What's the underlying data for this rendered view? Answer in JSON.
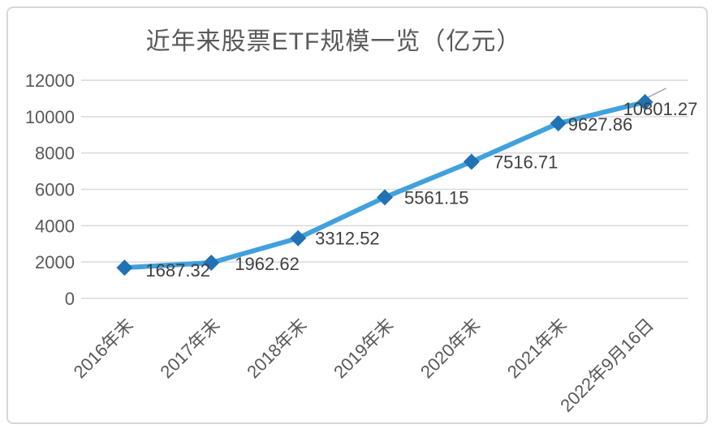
{
  "chart_data": {
    "type": "line",
    "title": "近年来股票ETF规模一览（亿元）",
    "categories": [
      "2016年末",
      "2017年末",
      "2018年末",
      "2019年末",
      "2020年末",
      "2021年末",
      "2022年9月16日"
    ],
    "values": [
      1687.32,
      1962.62,
      3312.52,
      5561.15,
      7516.71,
      9627.86,
      10801.27
    ],
    "data_labels": [
      "1687.32",
      "1962.62",
      "3312.52",
      "5561.15",
      "7516.71",
      "9627.86",
      "10801.27"
    ],
    "ylim": [
      0,
      12000
    ],
    "yticks": [
      0,
      2000,
      4000,
      6000,
      8000,
      10000,
      12000
    ],
    "ytick_labels": [
      "0",
      "2000",
      "4000",
      "6000",
      "8000",
      "10000",
      "12000"
    ],
    "grid": "horizontal",
    "legend": "none",
    "x_label_rotation": -45,
    "marker": "diamond",
    "last_label_has_leader_line": true,
    "colors": {
      "line": "#41a1dc",
      "marker": "#2171b5",
      "gridline": "#d9d9d9",
      "axis_text": "#595959",
      "data_label_text": "#404040",
      "title_text": "#595959",
      "leader_line": "#a0a0a0",
      "card_border": "#d7d7d7",
      "background": "#ffffff"
    }
  }
}
